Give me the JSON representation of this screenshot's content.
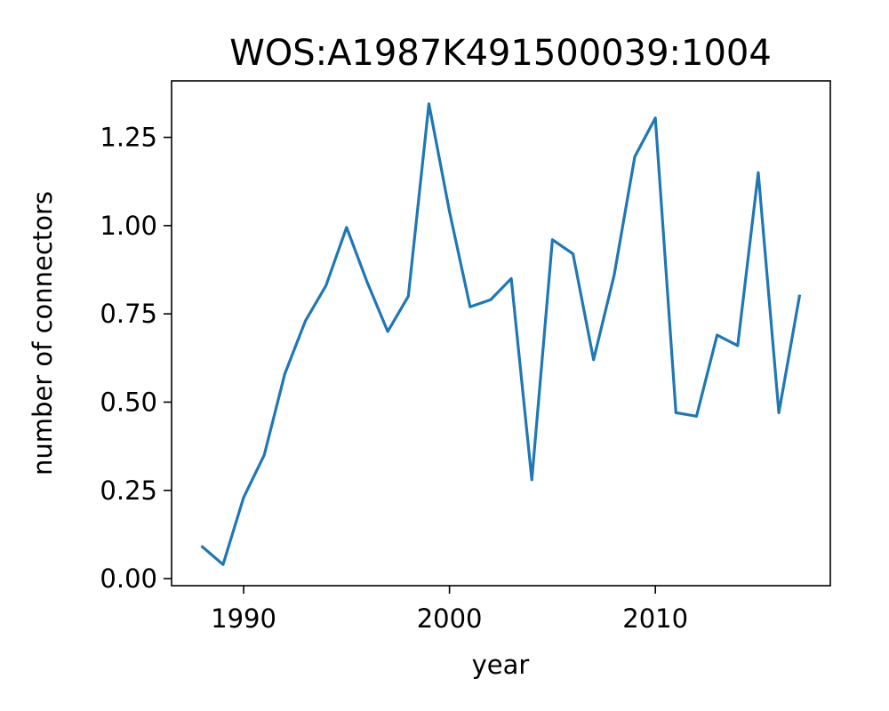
{
  "chart_data": {
    "type": "line",
    "title": "WOS:A1987K491500039:1004",
    "xlabel": "year",
    "ylabel": "number of connectors",
    "xlim": [
      1986.5,
      2018.5
    ],
    "ylim": [
      -0.02,
      1.41
    ],
    "xticks": [
      1990,
      2000,
      2010
    ],
    "xtick_labels": [
      "1990",
      "2000",
      "2010"
    ],
    "yticks": [
      0,
      0.25,
      0.5,
      0.75,
      1.0,
      1.25
    ],
    "ytick_labels": [
      "0.00",
      "0.25",
      "0.50",
      "0.75",
      "1.00",
      "1.25"
    ],
    "grid": false,
    "series": [
      {
        "color": "#1f77b4",
        "x": [
          1988,
          1989,
          1990,
          1991,
          1992,
          1993,
          1994,
          1995,
          1996,
          1997,
          1998,
          1999,
          2000,
          2001,
          2002,
          2003,
          2004,
          2005,
          2006,
          2007,
          2008,
          2009,
          2010,
          2011,
          2012,
          2013,
          2014,
          2015,
          2016,
          2017
        ],
        "y": [
          0.09,
          0.04,
          0.23,
          0.35,
          0.58,
          0.73,
          0.83,
          0.995,
          0.84,
          0.7,
          0.8,
          1.345,
          1.04,
          0.77,
          0.79,
          0.85,
          0.28,
          0.96,
          0.92,
          0.62,
          0.86,
          1.195,
          1.305,
          0.47,
          0.46,
          0.69,
          0.66,
          1.15,
          0.47,
          0.8
        ]
      }
    ]
  }
}
